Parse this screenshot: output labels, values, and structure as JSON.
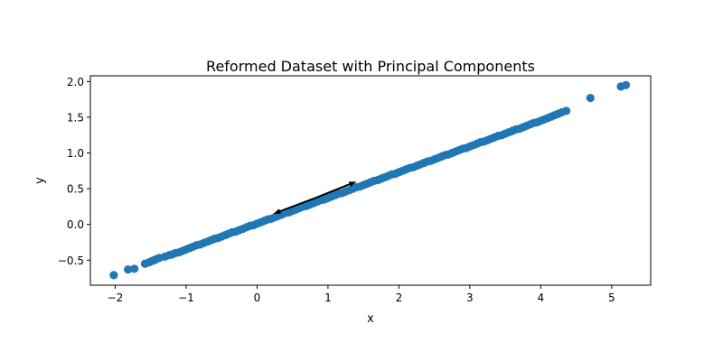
{
  "chart_data": {
    "type": "scatter",
    "title": "Reformed Dataset with Principal Components",
    "xlabel": "x",
    "ylabel": "y",
    "xlim": [
      -2.35,
      5.55
    ],
    "ylim": [
      -0.85,
      2.08
    ],
    "xticks": [
      -2,
      -1,
      0,
      1,
      2,
      3,
      4,
      5
    ],
    "xtick_labels": [
      "−2",
      "−1",
      "0",
      "1",
      "2",
      "3",
      "4",
      "5"
    ],
    "yticks": [
      -0.5,
      0.0,
      0.5,
      1.0,
      1.5,
      2.0
    ],
    "ytick_labels": [
      "−0.5",
      "0.0",
      "0.5",
      "1.0",
      "1.5",
      "2.0"
    ],
    "grid": false,
    "legend": false,
    "point_color": "#1f77b4",
    "arrow_color": "#000000",
    "series": [
      {
        "relationship": "y = 0.3754 * x + 0.0",
        "x": [
          -2.02,
          -1.82,
          -1.73,
          -1.58,
          -1.52,
          -1.48,
          -1.45,
          -1.43,
          -1.38,
          -1.3,
          -1.24,
          -1.2,
          -1.15,
          -1.1,
          -1.05,
          -1.0,
          -0.95,
          -0.9,
          -0.85,
          -0.8,
          -0.75,
          -0.7,
          -0.65,
          -0.6,
          -0.55,
          -0.5,
          -0.45,
          -0.4,
          -0.35,
          -0.3,
          -0.25,
          -0.2,
          -0.15,
          -0.1,
          -0.05,
          0.0,
          0.05,
          0.1,
          0.15,
          0.2,
          0.25,
          0.3,
          0.35,
          0.4,
          0.45,
          0.5,
          0.55,
          0.6,
          0.65,
          0.7,
          0.75,
          0.8,
          0.85,
          0.9,
          0.95,
          1.0,
          1.05,
          1.1,
          1.15,
          1.2,
          1.25,
          1.3,
          1.35,
          1.4,
          1.45,
          1.5,
          1.55,
          1.6,
          1.65,
          1.7,
          1.75,
          1.8,
          1.85,
          1.9,
          1.95,
          2.0,
          2.05,
          2.1,
          2.15,
          2.2,
          2.25,
          2.3,
          2.35,
          2.4,
          2.45,
          2.5,
          2.55,
          2.6,
          2.65,
          2.7,
          2.75,
          2.8,
          2.85,
          2.9,
          2.95,
          3.0,
          3.05,
          3.1,
          3.15,
          3.2,
          3.25,
          3.3,
          3.35,
          3.4,
          3.45,
          3.5,
          3.55,
          3.6,
          3.65,
          3.7,
          3.75,
          3.8,
          3.85,
          3.9,
          3.95,
          4.0,
          4.05,
          4.1,
          4.15,
          4.2,
          4.25,
          4.3,
          4.36,
          4.7,
          5.13,
          5.2
        ],
        "y": [
          -0.71,
          -0.63,
          -0.62,
          -0.55,
          -0.53,
          -0.51,
          -0.5,
          -0.49,
          -0.47,
          -0.45,
          -0.43,
          -0.42,
          -0.4,
          -0.39,
          -0.37,
          -0.35,
          -0.33,
          -0.31,
          -0.29,
          -0.28,
          -0.26,
          -0.24,
          -0.22,
          -0.2,
          -0.19,
          -0.17,
          -0.15,
          -0.13,
          -0.11,
          -0.1,
          -0.08,
          -0.06,
          -0.04,
          -0.02,
          -0.01,
          0.01,
          0.03,
          0.05,
          0.07,
          0.08,
          0.1,
          0.12,
          0.14,
          0.16,
          0.17,
          0.19,
          0.21,
          0.23,
          0.25,
          0.26,
          0.28,
          0.3,
          0.32,
          0.34,
          0.35,
          0.37,
          0.39,
          0.41,
          0.43,
          0.44,
          0.46,
          0.48,
          0.5,
          0.52,
          0.53,
          0.55,
          0.57,
          0.59,
          0.61,
          0.62,
          0.64,
          0.66,
          0.68,
          0.7,
          0.71,
          0.73,
          0.75,
          0.77,
          0.79,
          0.8,
          0.82,
          0.84,
          0.86,
          0.88,
          0.89,
          0.91,
          0.93,
          0.95,
          0.97,
          0.98,
          1.0,
          1.02,
          1.04,
          1.06,
          1.07,
          1.09,
          1.11,
          1.13,
          1.15,
          1.16,
          1.18,
          1.2,
          1.22,
          1.24,
          1.25,
          1.27,
          1.29,
          1.31,
          1.33,
          1.34,
          1.36,
          1.38,
          1.4,
          1.42,
          1.43,
          1.45,
          1.47,
          1.49,
          1.51,
          1.53,
          1.55,
          1.57,
          1.59,
          1.77,
          1.93,
          1.95
        ]
      }
    ],
    "arrows": [
      {
        "from": [
          0.82,
          0.37
        ],
        "to": [
          1.4,
          0.6
        ]
      },
      {
        "from": [
          0.82,
          0.37
        ],
        "to": [
          0.23,
          0.15
        ]
      }
    ]
  }
}
